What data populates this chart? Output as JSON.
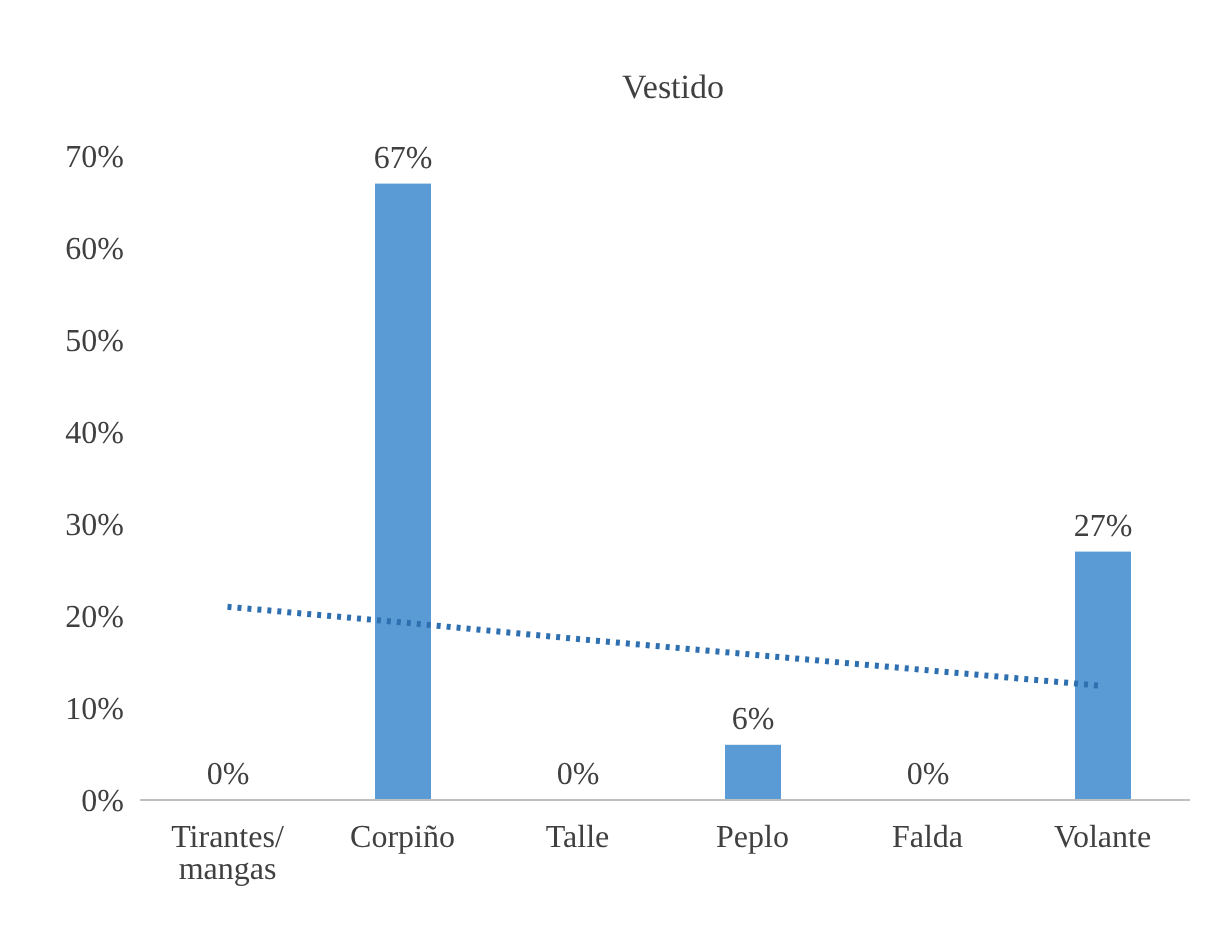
{
  "chart_data": {
    "type": "bar",
    "title": "Vestido",
    "categories": [
      "Tirantes/ mangas",
      "Corpiño",
      "Talle",
      "Peplo",
      "Falda",
      "Volante"
    ],
    "series": [
      {
        "color": "#5b9bd5",
        "values": [
          0,
          67,
          0,
          6,
          0,
          27
        ],
        "value_labels": [
          "0%",
          "67%",
          "0%",
          "6%",
          "0%",
          "27%"
        ]
      },
      {
        "type": "line",
        "color": "#2e6fb0",
        "line_style": "dotted",
        "marker": "none",
        "values": [
          21,
          19.3,
          17.5,
          15.8,
          14.1,
          12.4
        ]
      }
    ],
    "ylim": [
      0,
      70
    ],
    "yticks": [
      {
        "value": 0,
        "label": "0%"
      },
      {
        "value": 10,
        "label": "10%"
      },
      {
        "value": 20,
        "label": "20%"
      },
      {
        "value": 30,
        "label": "30%"
      },
      {
        "value": 40,
        "label": "40%"
      },
      {
        "value": 50,
        "label": "50%"
      },
      {
        "value": 60,
        "label": "60%"
      },
      {
        "value": 70,
        "label": "70%"
      }
    ],
    "grid": false,
    "legend": false
  }
}
